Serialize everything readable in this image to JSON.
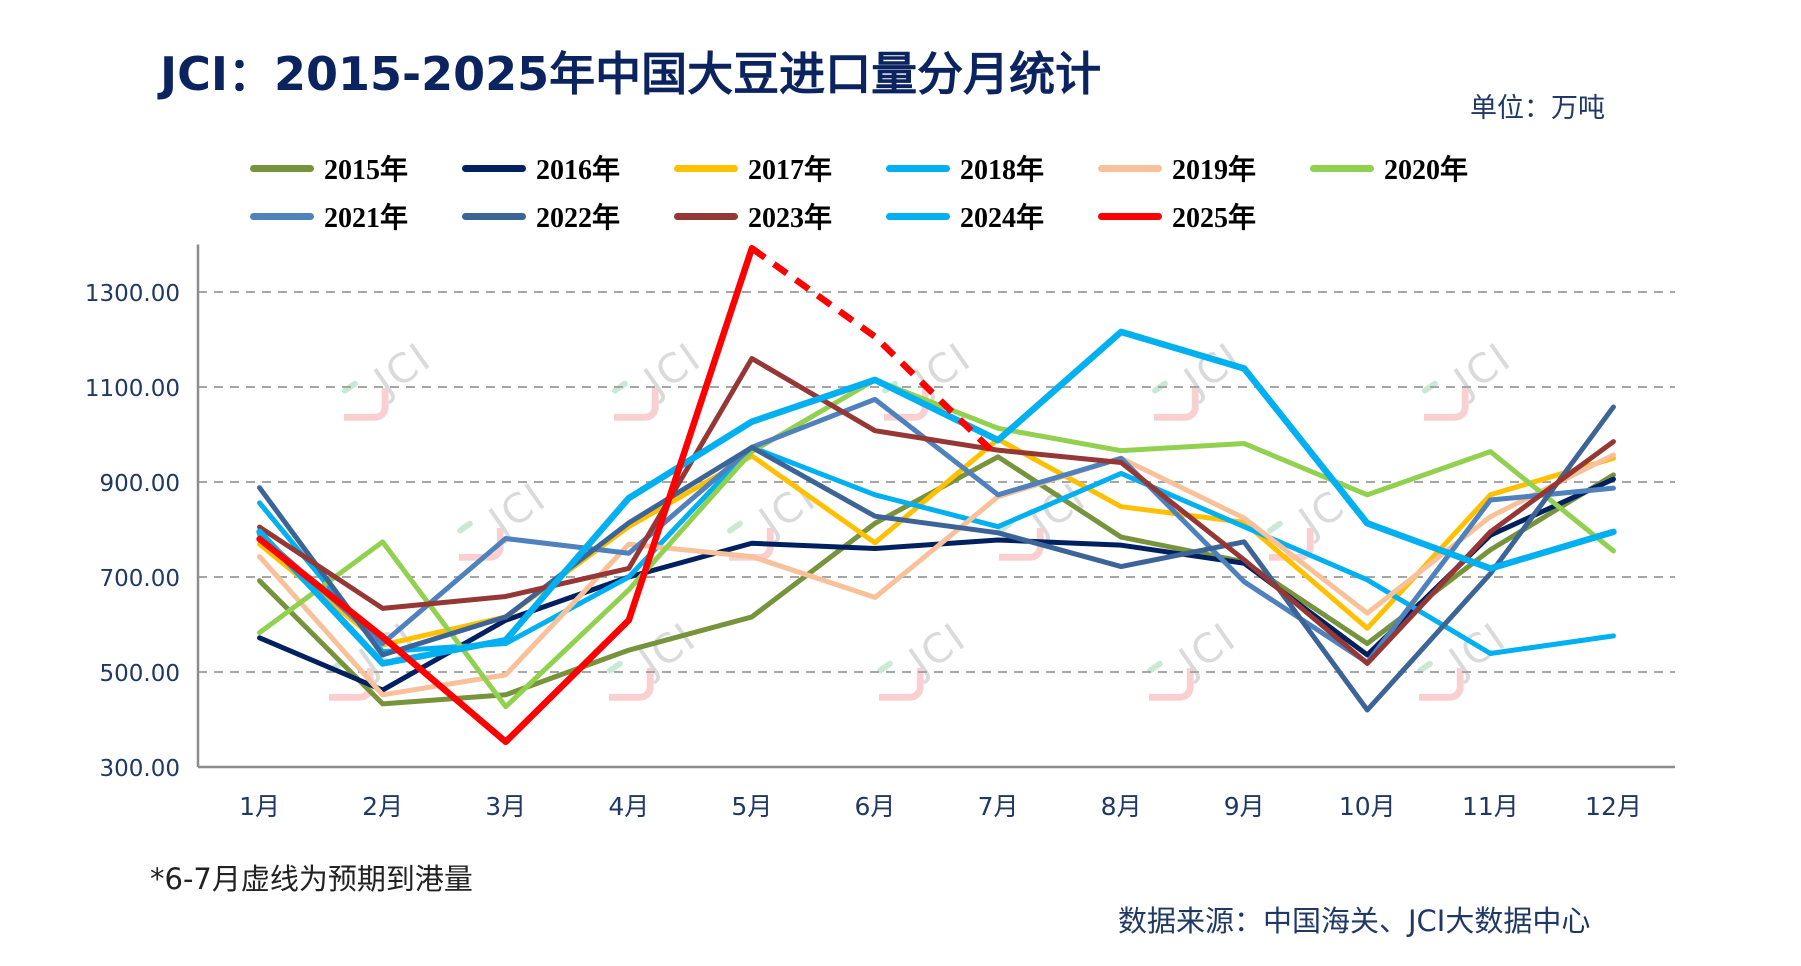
{
  "header": {
    "title": "JCI：2015-2025年中国大豆进口量分月统计",
    "unit": "单位：万吨"
  },
  "footer": {
    "footnote": "*6-7月虚线为预期到港量",
    "source": "数据来源：中国海关、JCI大数据中心"
  },
  "watermark": {
    "text": "JCI"
  },
  "chart_data": {
    "type": "line",
    "title": "JCI：2015-2025年中国大豆进口量分月统计",
    "xlabel": "",
    "ylabel": "万吨",
    "categories": [
      "1月",
      "2月",
      "3月",
      "4月",
      "5月",
      "6月",
      "7月",
      "8月",
      "9月",
      "10月",
      "11月",
      "12月"
    ],
    "ylim": [
      300,
      1400
    ],
    "yticks": [
      300,
      500,
      700,
      900,
      1100,
      1300
    ],
    "ytick_labels": [
      "300.00",
      "500.00",
      "700.00",
      "900.00",
      "1100.00",
      "1300.00"
    ],
    "grid": "horizontal-dashed",
    "legend_position": "top",
    "series": [
      {
        "name": "2015年",
        "color": "#77933C",
        "values": [
          692,
          433,
          452,
          546,
          616,
          813,
          953,
          784,
          732,
          560,
          757,
          915
        ]
      },
      {
        "name": "2016年",
        "color": "#002060",
        "values": [
          572,
          462,
          609,
          700,
          771,
          760,
          778,
          767,
          729,
          536,
          788,
          906
        ]
      },
      {
        "name": "2017年",
        "color": "#FFC000",
        "values": [
          769,
          557,
          616,
          806,
          955,
          772,
          990,
          848,
          815,
          592,
          873,
          950
        ]
      },
      {
        "name": "2018年",
        "color": "#00B0F0",
        "values": [
          856,
          543,
          560,
          700,
          973,
          873,
          806,
          918,
          806,
          694,
          539,
          576
        ]
      },
      {
        "name": "2019年",
        "color": "#F8C19A",
        "values": [
          743,
          452,
          494,
          769,
          743,
          657,
          869,
          950,
          824,
          624,
          827,
          957
        ]
      },
      {
        "name": "2020年",
        "color": "#92D050",
        "values": [
          583,
          774,
          427,
          673,
          964,
          1115,
          1013,
          966,
          981,
          873,
          964,
          755
        ]
      },
      {
        "name": "2021年",
        "color": "#4F81BD",
        "values": [
          790,
          560,
          781,
          750,
          973,
          1074,
          873,
          950,
          690,
          520,
          862,
          887
        ]
      },
      {
        "name": "2022年",
        "color": "#3C6496",
        "values": [
          888,
          536,
          616,
          814,
          973,
          828,
          793,
          722,
          774,
          420,
          707,
          1058
        ]
      },
      {
        "name": "2023年",
        "color": "#953735",
        "values": [
          805,
          634,
          659,
          718,
          1160,
          1008,
          967,
          941,
          736,
          518,
          795,
          985
        ]
      },
      {
        "name": "2024年",
        "color": "#00B0F0",
        "values": [
          795,
          518,
          567,
          866,
          1027,
          1115,
          988,
          1216,
          1139,
          813,
          718,
          795
        ]
      },
      {
        "name": "2025年",
        "color": "#FF0000",
        "values": [
          780,
          574,
          353,
          609,
          1392,
          1206,
          953,
          null,
          null,
          null,
          null,
          null
        ],
        "dashed_from_index": 4,
        "annotation": "6-7月为预期到港量"
      }
    ]
  }
}
